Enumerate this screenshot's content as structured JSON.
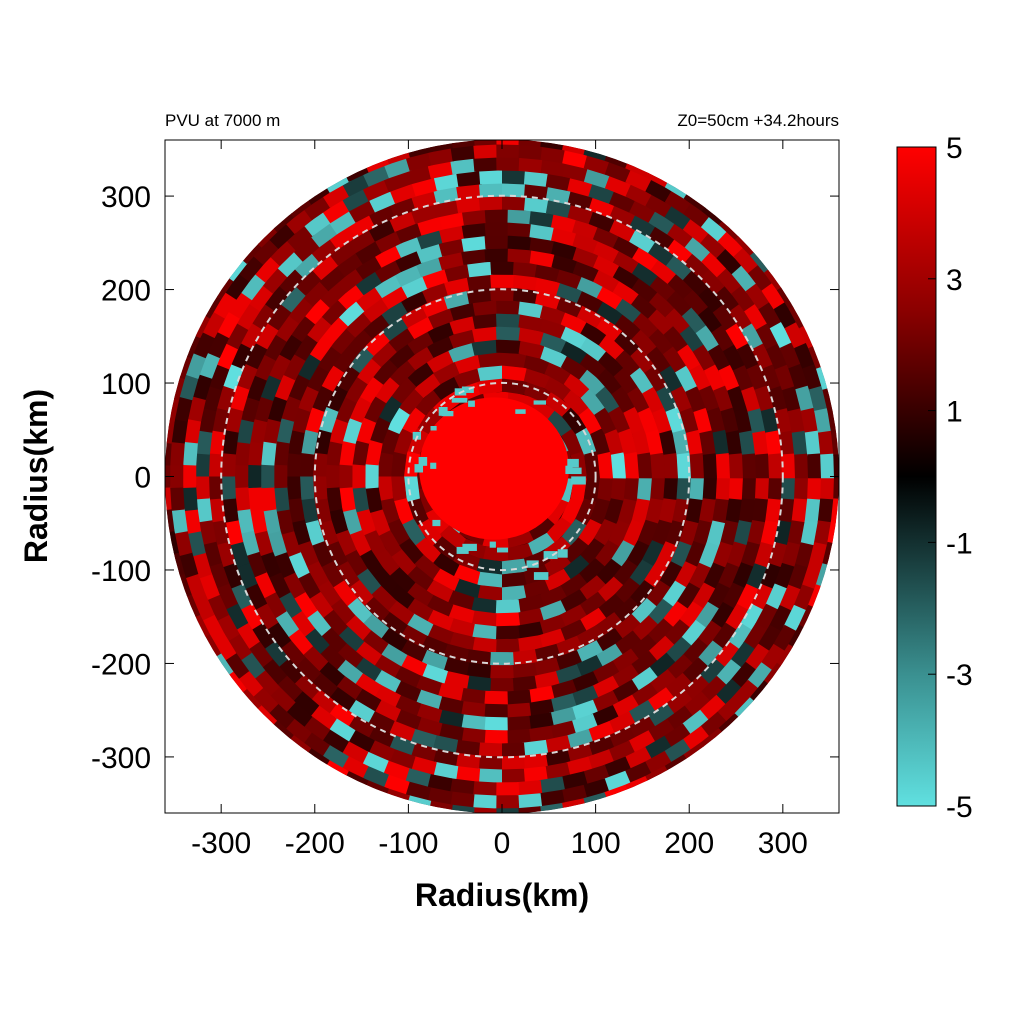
{
  "chart_data": {
    "type": "heatmap",
    "title_left": "PVU at  7000 m",
    "title_right": "Z0=50cm  +34.2hours",
    "xlabel": "Radius(km)",
    "ylabel": "Radius(km)",
    "xlim": [
      -360,
      360
    ],
    "ylim": [
      -360,
      360
    ],
    "x_ticks": [
      "-300",
      "-200",
      "-100",
      "0",
      "100",
      "200",
      "300"
    ],
    "y_ticks": [
      "300",
      "200",
      "100",
      "0",
      "-100",
      "-200",
      "-300"
    ],
    "x_tick_values": [
      -300,
      -200,
      -100,
      0,
      100,
      200,
      300
    ],
    "y_tick_values": [
      300,
      200,
      100,
      0,
      -100,
      -200,
      -300
    ],
    "domain_radius_km": 360,
    "range_rings_km": [
      100,
      200,
      300
    ],
    "colorbar": {
      "range": [
        -5,
        5
      ],
      "ticks": [
        "5",
        "3",
        "1",
        "-1",
        "-3",
        "-5"
      ],
      "tick_values": [
        5,
        3,
        1,
        -1,
        -3,
        -5
      ],
      "colors": [
        "#60e0e0",
        "#000000",
        "#ff0000"
      ]
    },
    "field_description": {
      "core_radius_km": 80,
      "core_value": 5
    }
  }
}
